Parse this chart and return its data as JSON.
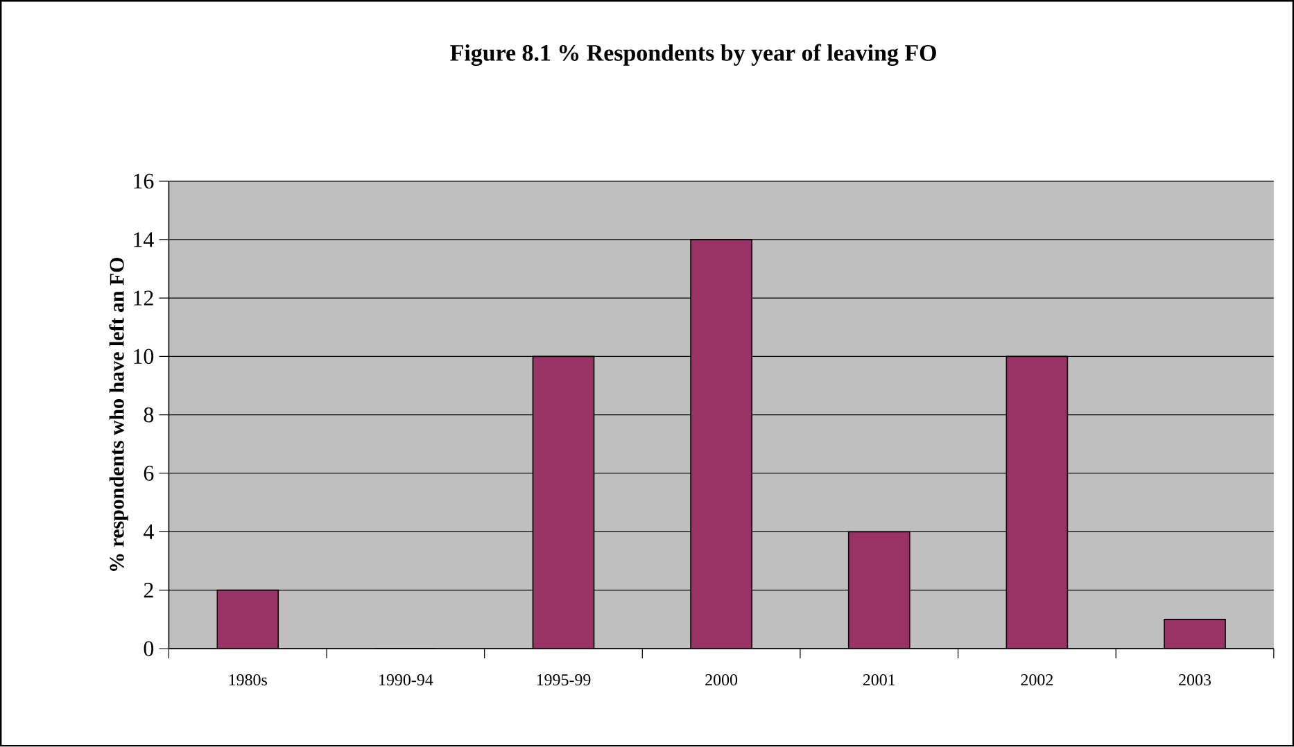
{
  "chart_data": {
    "type": "bar",
    "title": "Figure 8.1 % Respondents by year of leaving FO",
    "ylabel": "% respondents who have left an FO",
    "categories": [
      "1980s",
      "1990-94",
      "1995-99",
      "2000",
      "2001",
      "2002",
      "2003"
    ],
    "values": [
      2,
      0,
      10,
      14,
      4,
      10,
      1
    ],
    "color": "#993366",
    "ylim": [
      0,
      16
    ],
    "yticks": [
      0,
      2,
      4,
      6,
      8,
      10,
      12,
      14,
      16
    ],
    "grid": "y"
  }
}
